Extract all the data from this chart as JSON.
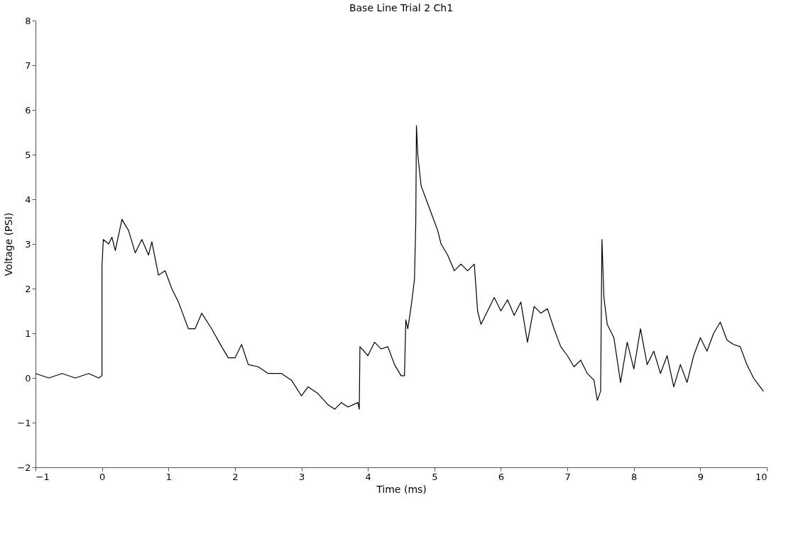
{
  "chart_data": {
    "type": "line",
    "title": "Base Line Trial 2 Ch1",
    "xlabel": "Time (ms)",
    "ylabel": "Voltage (PSI)",
    "xlim": [
      -1,
      10
    ],
    "xticks": [
      -1,
      0,
      1,
      2,
      3,
      4,
      5,
      6,
      7,
      8,
      9,
      10
    ],
    "ylim": [
      -2,
      8
    ],
    "yticks": [
      -2,
      -1,
      0,
      1,
      2,
      3,
      4,
      5,
      6,
      7,
      8
    ],
    "grid": false,
    "legend": false,
    "marker": "none",
    "line_style": "solid",
    "series": [
      {
        "color": "#000000",
        "x": [
          -1.0,
          -0.8,
          -0.6,
          -0.4,
          -0.2,
          -0.05,
          0.0,
          0.0,
          0.02,
          0.1,
          0.15,
          0.2,
          0.3,
          0.4,
          0.5,
          0.6,
          0.7,
          0.75,
          0.85,
          0.95,
          1.05,
          1.15,
          1.3,
          1.4,
          1.5,
          1.65,
          1.8,
          1.9,
          2.0,
          2.1,
          2.2,
          2.35,
          2.5,
          2.7,
          2.85,
          3.0,
          3.1,
          3.25,
          3.4,
          3.5,
          3.6,
          3.7,
          3.85,
          3.87,
          3.88,
          4.0,
          4.1,
          4.2,
          4.3,
          4.4,
          4.5,
          4.55,
          4.57,
          4.6,
          4.65,
          4.7,
          4.72,
          4.73,
          4.75,
          4.8,
          4.9,
          5.0,
          5.05,
          5.1,
          5.2,
          5.3,
          5.4,
          5.5,
          5.6,
          5.65,
          5.7,
          5.8,
          5.9,
          6.0,
          6.1,
          6.2,
          6.3,
          6.4,
          6.5,
          6.6,
          6.7,
          6.8,
          6.9,
          7.0,
          7.1,
          7.2,
          7.3,
          7.4,
          7.45,
          7.5,
          7.52,
          7.55,
          7.6,
          7.7,
          7.8,
          7.9,
          8.0,
          8.1,
          8.2,
          8.3,
          8.4,
          8.5,
          8.6,
          8.7,
          8.8,
          8.9,
          9.0,
          9.1,
          9.2,
          9.3,
          9.4,
          9.5,
          9.6,
          9.7,
          9.8,
          9.9,
          9.95
        ],
        "values": [
          0.1,
          0.0,
          0.1,
          0.0,
          0.1,
          0.0,
          0.05,
          2.5,
          3.1,
          3.0,
          3.15,
          2.85,
          3.55,
          3.3,
          2.8,
          3.1,
          2.75,
          3.05,
          2.3,
          2.4,
          2.0,
          1.7,
          1.1,
          1.1,
          1.45,
          1.1,
          0.7,
          0.45,
          0.45,
          0.75,
          0.3,
          0.25,
          0.1,
          0.1,
          -0.05,
          -0.4,
          -0.2,
          -0.35,
          -0.6,
          -0.7,
          -0.55,
          -0.65,
          -0.55,
          -0.7,
          0.7,
          0.5,
          0.8,
          0.65,
          0.7,
          0.3,
          0.05,
          0.05,
          1.3,
          1.1,
          1.6,
          2.2,
          3.5,
          5.65,
          5.0,
          4.3,
          3.9,
          3.5,
          3.3,
          3.0,
          2.75,
          2.4,
          2.55,
          2.4,
          2.55,
          1.5,
          1.2,
          1.5,
          1.8,
          1.5,
          1.75,
          1.4,
          1.7,
          0.8,
          1.6,
          1.45,
          1.55,
          1.1,
          0.7,
          0.5,
          0.25,
          0.4,
          0.1,
          -0.05,
          -0.5,
          -0.3,
          3.1,
          1.8,
          1.2,
          0.9,
          -0.1,
          0.8,
          0.2,
          1.1,
          0.3,
          0.6,
          0.1,
          0.5,
          -0.2,
          0.3,
          -0.1,
          0.5,
          0.9,
          0.6,
          1.0,
          1.25,
          0.85,
          0.75,
          0.7,
          0.3,
          0.0,
          -0.2,
          -0.3
        ]
      }
    ]
  }
}
